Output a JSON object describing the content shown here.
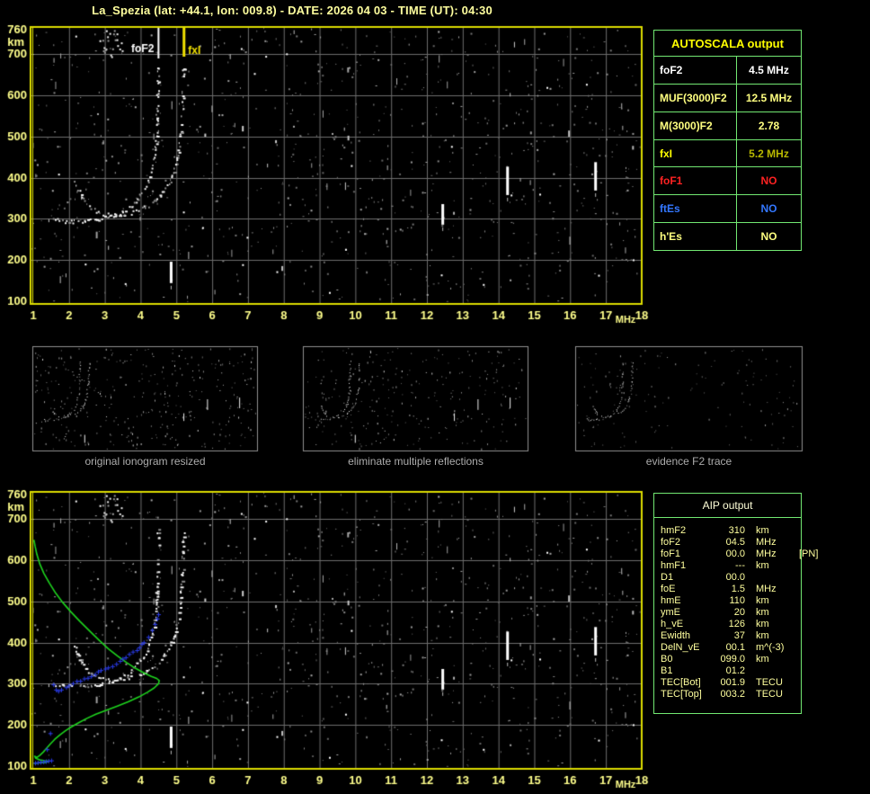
{
  "title": "La_Spezia (lat: +44.1, lon: 009.8) - DATE: 2026 04 03 - TIME (UT): 04:30",
  "colors": {
    "border_yellow": "#DCDC00",
    "grid_gray": "#6E6E6E",
    "tick_yellow": "#FFFF8C",
    "table_green": "#72E872",
    "profile_green": "#1ED41E",
    "restored_blue": "#2A3BE8",
    "trace_white": "#F5F5F5",
    "noise_gray": "#8C8C8C",
    "marker_fof2": "#FFFFFF",
    "marker_fxi": "#F0E000",
    "caption_gray": "#ACACAC"
  },
  "autoscala_table": {
    "header": "AUTOSCALA output",
    "rows": [
      {
        "label": "foF2",
        "value": "4.5 MHz",
        "label_color": "#FFFFFF",
        "value_color": "#FFFFFF"
      },
      {
        "label": "MUF(3000)F2",
        "value": "12.5 MHz",
        "label_color": "#FFFF80",
        "value_color": "#FFFF80"
      },
      {
        "label": "M(3000)F2",
        "value": "2.78",
        "label_color": "#FFFF80",
        "value_color": "#FFFF80"
      },
      {
        "label": "fxI",
        "value": "5.2 MHz",
        "label_color": "#FFFF00",
        "value_color": "#B8B800"
      },
      {
        "label": "foF1",
        "value": "NO",
        "label_color": "#FF2222",
        "value_color": "#FF2222"
      },
      {
        "label": "ftEs",
        "value": "NO",
        "label_color": "#3377FF",
        "value_color": "#3377FF"
      },
      {
        "label": "h'Es",
        "value": "NO",
        "label_color": "#FFFF80",
        "value_color": "#FFFF80"
      }
    ]
  },
  "aip_table": {
    "header": "AIP output",
    "rows": [
      {
        "label": "hmF2",
        "value": "310",
        "unit": "km",
        "extra": ""
      },
      {
        "label": "foF2",
        "value": "04.5",
        "unit": "MHz",
        "extra": ""
      },
      {
        "label": "foF1",
        "value": "00.0",
        "unit": "MHz",
        "extra": "[PN]"
      },
      {
        "label": "hmF1",
        "value": "---",
        "unit": "km",
        "extra": ""
      },
      {
        "label": "D1",
        "value": "00.0",
        "unit": "",
        "extra": ""
      },
      {
        "label": "foE",
        "value": "1.5",
        "unit": "MHz",
        "extra": ""
      },
      {
        "label": "hmE",
        "value": "110",
        "unit": "km",
        "extra": ""
      },
      {
        "label": "ymE",
        "value": "20",
        "unit": "km",
        "extra": ""
      },
      {
        "label": "h_vE",
        "value": "126",
        "unit": "km",
        "extra": ""
      },
      {
        "label": "Ewidth",
        "value": "37",
        "unit": "km",
        "extra": ""
      },
      {
        "label": "DelN_vE",
        "value": "00.1",
        "unit": "m^(-3)",
        "extra": ""
      },
      {
        "label": "B0",
        "value": "099.0",
        "unit": "km",
        "extra": ""
      },
      {
        "label": "B1",
        "value": "01.2",
        "unit": "",
        "extra": ""
      },
      {
        "label": "TEC[Bot]",
        "value": "001.9",
        "unit": "TECU",
        "extra": ""
      },
      {
        "label": "TEC[Top]",
        "value": "003.2",
        "unit": "TECU",
        "extra": ""
      }
    ]
  },
  "thumbnails": [
    {
      "caption": "original ionogram resized"
    },
    {
      "caption": "eliminate multiple reflections"
    },
    {
      "caption": "evidence F2 trace"
    }
  ],
  "chart_data": {
    "type": "scatter",
    "x_axis": {
      "label": "MHz",
      "range": [
        1,
        18
      ],
      "ticks": [
        1,
        2,
        3,
        4,
        5,
        6,
        7,
        8,
        9,
        10,
        11,
        12,
        13,
        14,
        15,
        16,
        17,
        18
      ]
    },
    "y_axis": {
      "label": "km",
      "range": [
        100,
        760
      ],
      "ticks": [
        760,
        700,
        600,
        500,
        400,
        300,
        200,
        100
      ]
    },
    "plots": [
      {
        "name": "main ionogram with AUTOSCALA markers",
        "markers": true,
        "profile": false,
        "blue": false
      },
      {
        "name": "ionogram with AIP electron density profile",
        "markers": false,
        "profile": true,
        "blue": true
      }
    ],
    "markers": [
      {
        "label": "foF2",
        "mhz": 4.5,
        "color": "#FFFFFF"
      },
      {
        "label": "fxI",
        "mhz": 5.2,
        "color": "#F0E000"
      }
    ],
    "series": {
      "o_trace": [
        [
          1.55,
          300
        ],
        [
          1.8,
          296
        ],
        [
          2.1,
          294
        ],
        [
          2.4,
          295
        ],
        [
          2.7,
          298
        ],
        [
          3.0,
          303
        ],
        [
          3.2,
          308
        ],
        [
          3.4,
          315
        ],
        [
          3.6,
          325
        ],
        [
          3.8,
          338
        ],
        [
          3.95,
          352
        ],
        [
          4.1,
          370
        ],
        [
          4.2,
          390
        ],
        [
          4.28,
          412
        ],
        [
          4.34,
          435
        ],
        [
          4.39,
          460
        ],
        [
          4.42,
          490
        ],
        [
          4.44,
          520
        ],
        [
          4.45,
          550
        ],
        [
          4.46,
          585
        ],
        [
          4.47,
          620
        ],
        [
          4.48,
          660
        ],
        [
          4.48,
          685
        ]
      ],
      "x_trace": [
        [
          2.15,
          390
        ],
        [
          2.3,
          362
        ],
        [
          2.45,
          342
        ],
        [
          2.6,
          328
        ],
        [
          2.8,
          318
        ],
        [
          3.0,
          312
        ],
        [
          3.2,
          310
        ],
        [
          3.5,
          312
        ],
        [
          3.8,
          318
        ],
        [
          4.05,
          327
        ],
        [
          4.3,
          340
        ],
        [
          4.5,
          355
        ],
        [
          4.7,
          375
        ],
        [
          4.85,
          400
        ],
        [
          4.95,
          428
        ],
        [
          5.03,
          458
        ],
        [
          5.08,
          490
        ],
        [
          5.12,
          525
        ],
        [
          5.15,
          560
        ],
        [
          5.17,
          600
        ],
        [
          5.18,
          640
        ],
        [
          5.19,
          675
        ]
      ],
      "profile_green": [
        [
          1.02,
          650
        ],
        [
          1.05,
          635
        ],
        [
          1.1,
          615
        ],
        [
          1.18,
          592
        ],
        [
          1.3,
          568
        ],
        [
          1.45,
          545
        ],
        [
          1.63,
          520
        ],
        [
          1.82,
          498
        ],
        [
          2.05,
          475
        ],
        [
          2.3,
          452
        ],
        [
          2.58,
          428
        ],
        [
          2.85,
          405
        ],
        [
          3.1,
          385
        ],
        [
          3.35,
          368
        ],
        [
          3.6,
          352
        ],
        [
          3.85,
          338
        ],
        [
          4.1,
          326
        ],
        [
          4.3,
          318
        ],
        [
          4.45,
          313
        ],
        [
          4.52,
          308
        ],
        [
          4.5,
          300
        ],
        [
          4.38,
          290
        ],
        [
          4.2,
          280
        ],
        [
          3.95,
          268
        ],
        [
          3.65,
          256
        ],
        [
          3.35,
          246
        ],
        [
          3.05,
          236
        ],
        [
          2.75,
          226
        ],
        [
          2.5,
          216
        ],
        [
          2.28,
          206
        ],
        [
          2.08,
          196
        ],
        [
          1.9,
          186
        ],
        [
          1.75,
          176
        ],
        [
          1.6,
          165
        ],
        [
          1.48,
          154
        ],
        [
          1.38,
          144
        ],
        [
          1.28,
          134
        ],
        [
          1.18,
          126
        ],
        [
          1.1,
          121
        ],
        [
          1.04,
          124
        ],
        [
          1.07,
          119
        ],
        [
          1.18,
          115
        ],
        [
          1.32,
          113
        ],
        [
          1.44,
          112
        ],
        [
          1.35,
          109
        ],
        [
          1.2,
          108
        ],
        [
          1.08,
          107
        ],
        [
          1.02,
          107
        ]
      ],
      "restored_trace_blue": [
        [
          1.55,
          300
        ],
        [
          1.62,
          284
        ],
        [
          1.7,
          282
        ],
        [
          1.8,
          288
        ],
        [
          2.0,
          297
        ],
        [
          2.2,
          305
        ],
        [
          2.4,
          312
        ],
        [
          2.6,
          320
        ],
        [
          2.8,
          328
        ],
        [
          3.0,
          336
        ],
        [
          3.2,
          345
        ],
        [
          3.4,
          355
        ],
        [
          3.6,
          366
        ],
        [
          3.8,
          378
        ],
        [
          3.95,
          390
        ],
        [
          4.1,
          403
        ],
        [
          4.2,
          416
        ],
        [
          4.3,
          430
        ],
        [
          4.38,
          445
        ],
        [
          4.44,
          460
        ],
        [
          4.5,
          478
        ]
      ],
      "blue_extra_points": [
        [
          1.05,
          108
        ],
        [
          1.12,
          109
        ],
        [
          1.2,
          110
        ],
        [
          1.28,
          111
        ],
        [
          1.35,
          112
        ],
        [
          1.42,
          113
        ],
        [
          1.5,
          114
        ],
        [
          1.38,
          141
        ],
        [
          1.47,
          180
        ]
      ],
      "interference_streaks": [
        {
          "mhz": 4.84,
          "km_from": 144,
          "km_to": 196
        },
        {
          "mhz": 12.43,
          "km_from": 286,
          "km_to": 336
        },
        {
          "mhz": 14.24,
          "km_from": 358,
          "km_to": 427
        },
        {
          "mhz": 16.7,
          "km_from": 369,
          "km_to": 438
        }
      ],
      "noise_clusters": [
        {
          "mhz_from": 2.85,
          "mhz_to": 3.55,
          "km_from": 695,
          "km_to": 762,
          "n": 22
        }
      ]
    },
    "noise": {
      "seed": 7,
      "dots": 860,
      "dashes": 58,
      "bright": 26
    },
    "thumbnail_noise": [
      {
        "seed": 11,
        "dots": 340
      },
      {
        "seed": 12,
        "dots": 270
      },
      {
        "seed": 13,
        "dots": 150
      }
    ]
  }
}
